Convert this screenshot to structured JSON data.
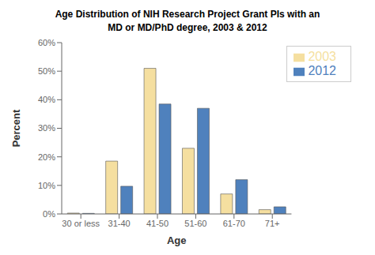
{
  "chart_data": {
    "type": "bar",
    "title": "Age Distribution of NIH Research Project Grant PIs with an\nMD or MD/PhD degree, 2003 & 2012",
    "xlabel": "Age",
    "ylabel": "Percent",
    "categories": [
      "30 or less",
      "31-40",
      "41-50",
      "51-60",
      "61-70",
      "71+"
    ],
    "series": [
      {
        "name": "2003",
        "color": "#F5DFA0",
        "values": [
          0.3,
          18.5,
          51.0,
          23.0,
          7.0,
          1.5
        ]
      },
      {
        "name": "2012",
        "color": "#4F81BD",
        "values": [
          0.2,
          9.7,
          38.5,
          37.0,
          12.0,
          2.5
        ]
      }
    ],
    "ylim": [
      0,
      60
    ],
    "yticks": [
      {
        "value": 0,
        "label": "0%"
      },
      {
        "value": 10,
        "label": "10%"
      },
      {
        "value": 20,
        "label": "20%"
      },
      {
        "value": 30,
        "label": "30%"
      },
      {
        "value": 40,
        "label": "40%"
      },
      {
        "value": 50,
        "label": "50%"
      },
      {
        "value": 60,
        "label": "60%"
      }
    ],
    "grid": false,
    "legend": "upper right"
  }
}
